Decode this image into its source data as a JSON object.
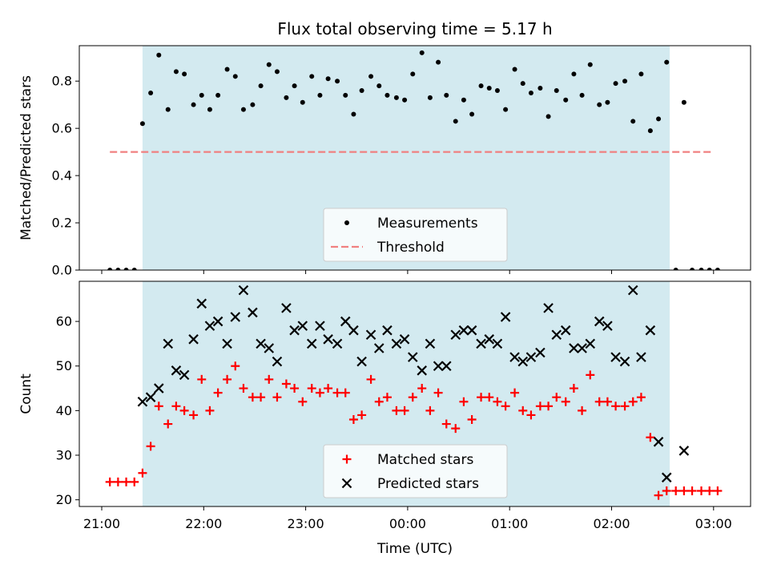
{
  "chart_data": {
    "type": "scatter",
    "title": "Flux total observing time = 5.17 h",
    "x_tick_labels": [
      "21:00",
      "22:00",
      "23:00",
      "00:00",
      "01:00",
      "02:00",
      "03:00"
    ],
    "x_tick_hours": [
      0,
      1,
      2,
      3,
      4,
      5,
      6
    ],
    "x_label": "Time (UTC)",
    "observing_window_hours": [
      0.4,
      5.57
    ],
    "colors": {
      "observing_span": "#d3eaf0",
      "threshold": "#f08080",
      "measurements": "#000000",
      "matched": "#ff0000",
      "predicted": "#000000"
    },
    "panels": [
      {
        "id": "ratio",
        "ylabel": "Matched/Predicted stars",
        "ylim": [
          0,
          0.95
        ],
        "yticks": [
          0,
          0.2,
          0.4,
          0.6,
          0.8
        ],
        "ytick_labels": [
          "0.0",
          "0.2",
          "0.4",
          "0.6",
          "0.8"
        ],
        "threshold": 0.5,
        "threshold_x_range": [
          0.08,
          6.0
        ],
        "legend": [
          "Measurements",
          "Threshold"
        ],
        "measurements": {
          "x": [
            0.08,
            0.16,
            0.24,
            0.32,
            0.4,
            0.48,
            0.56,
            0.65,
            0.73,
            0.81,
            0.9,
            0.98,
            1.06,
            1.14,
            1.23,
            1.31,
            1.39,
            1.48,
            1.56,
            1.64,
            1.72,
            1.81,
            1.89,
            1.97,
            2.06,
            2.14,
            2.22,
            2.31,
            2.39,
            2.47,
            2.55,
            2.64,
            2.72,
            2.8,
            2.89,
            2.97,
            3.05,
            3.14,
            3.22,
            3.3,
            3.38,
            3.47,
            3.55,
            3.63,
            3.72,
            3.8,
            3.88,
            3.96,
            4.05,
            4.13,
            4.21,
            4.3,
            4.38,
            4.46,
            4.55,
            4.63,
            4.71,
            4.79,
            4.88,
            4.96,
            5.04,
            5.13,
            5.21,
            5.29,
            5.38,
            5.46,
            5.54,
            5.63,
            5.71,
            5.79,
            5.88,
            5.96,
            6.04
          ],
          "y": [
            0,
            0,
            0,
            0,
            0.62,
            0.75,
            0.91,
            0.68,
            0.84,
            0.83,
            0.7,
            0.74,
            0.68,
            0.74,
            0.85,
            0.82,
            0.68,
            0.7,
            0.78,
            0.87,
            0.84,
            0.73,
            0.78,
            0.71,
            0.82,
            0.74,
            0.81,
            0.8,
            0.74,
            0.66,
            0.76,
            0.82,
            0.78,
            0.74,
            0.73,
            0.72,
            0.83,
            0.92,
            0.73,
            0.88,
            0.74,
            0.63,
            0.72,
            0.66,
            0.78,
            0.77,
            0.76,
            0.68,
            0.85,
            0.79,
            0.75,
            0.77,
            0.65,
            0.76,
            0.72,
            0.83,
            0.74,
            0.87,
            0.7,
            0.71,
            0.79,
            0.8,
            0.63,
            0.83,
            0.59,
            0.64,
            0.88,
            0,
            0.71,
            0,
            0,
            0,
            0
          ]
        }
      },
      {
        "id": "counts",
        "ylabel": "Count",
        "ylim": [
          18.5,
          69
        ],
        "yticks": [
          20,
          30,
          40,
          50,
          60
        ],
        "ytick_labels": [
          "20",
          "30",
          "40",
          "50",
          "60"
        ],
        "legend": [
          "Matched stars",
          "Predicted stars"
        ],
        "matched_stars": {
          "x": [
            0.08,
            0.16,
            0.24,
            0.32,
            0.4,
            0.48,
            0.56,
            0.65,
            0.73,
            0.81,
            0.9,
            0.98,
            1.06,
            1.14,
            1.23,
            1.31,
            1.39,
            1.48,
            1.56,
            1.64,
            1.72,
            1.81,
            1.89,
            1.97,
            2.06,
            2.14,
            2.22,
            2.31,
            2.39,
            2.47,
            2.55,
            2.64,
            2.72,
            2.8,
            2.89,
            2.97,
            3.05,
            3.14,
            3.22,
            3.3,
            3.38,
            3.47,
            3.55,
            3.63,
            3.72,
            3.8,
            3.88,
            3.96,
            4.05,
            4.13,
            4.21,
            4.3,
            4.38,
            4.46,
            4.55,
            4.63,
            4.71,
            4.79,
            4.88,
            4.96,
            5.04,
            5.13,
            5.21,
            5.29,
            5.38,
            5.46,
            5.54,
            5.63,
            5.71,
            5.79,
            5.88,
            5.96,
            6.04
          ],
          "y": [
            24,
            24,
            24,
            24,
            26,
            32,
            41,
            37,
            41,
            40,
            39,
            47,
            40,
            44,
            47,
            50,
            45,
            43,
            43,
            47,
            43,
            46,
            45,
            42,
            45,
            44,
            45,
            44,
            44,
            38,
            39,
            47,
            42,
            43,
            40,
            40,
            43,
            45,
            40,
            44,
            37,
            36,
            42,
            38,
            43,
            43,
            42,
            41,
            44,
            40,
            39,
            41,
            41,
            43,
            42,
            45,
            40,
            48,
            42,
            42,
            41,
            41,
            42,
            43,
            34,
            21,
            22,
            22,
            22,
            22,
            22,
            22,
            22
          ]
        },
        "predicted_stars": {
          "x": [
            0.4,
            0.48,
            0.56,
            0.65,
            0.73,
            0.81,
            0.9,
            0.98,
            1.06,
            1.14,
            1.23,
            1.31,
            1.39,
            1.48,
            1.56,
            1.64,
            1.72,
            1.81,
            1.89,
            1.97,
            2.06,
            2.14,
            2.22,
            2.31,
            2.39,
            2.47,
            2.55,
            2.64,
            2.72,
            2.8,
            2.89,
            2.97,
            3.05,
            3.14,
            3.22,
            3.3,
            3.38,
            3.47,
            3.55,
            3.63,
            3.72,
            3.8,
            3.88,
            3.96,
            4.05,
            4.13,
            4.21,
            4.3,
            4.38,
            4.46,
            4.55,
            4.63,
            4.71,
            4.79,
            4.88,
            4.96,
            5.04,
            5.13,
            5.21,
            5.29,
            5.38,
            5.46,
            5.54,
            5.71
          ],
          "y": [
            42,
            43,
            45,
            55,
            49,
            48,
            56,
            64,
            59,
            60,
            55,
            61,
            67,
            62,
            55,
            54,
            51,
            63,
            58,
            59,
            55,
            59,
            56,
            55,
            60,
            58,
            51,
            57,
            54,
            58,
            55,
            56,
            52,
            49,
            55,
            50,
            50,
            57,
            58,
            58,
            55,
            56,
            55,
            61,
            52,
            51,
            52,
            53,
            63,
            57,
            58,
            54,
            54,
            55,
            60,
            59,
            52,
            51,
            67,
            52,
            58,
            33,
            25,
            31
          ]
        }
      }
    ]
  }
}
